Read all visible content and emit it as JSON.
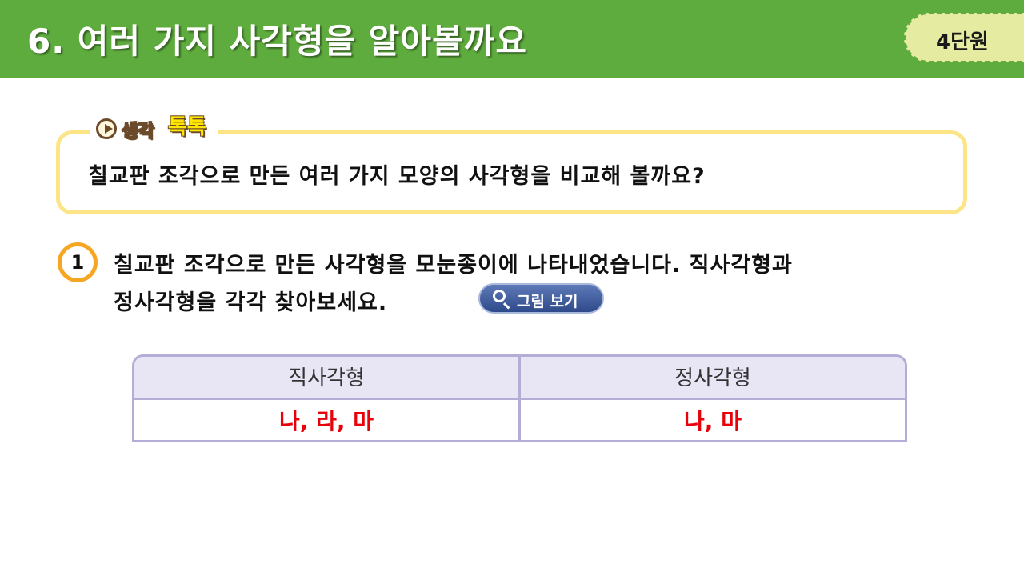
{
  "header": {
    "title": "6. 여러 가지 사각형을 알아볼까요",
    "unit_badge": "4단원",
    "background_color": "#5fac3e"
  },
  "think_box": {
    "tag_word1": "생각",
    "tag_word2": "톡톡",
    "icon": "play-icon",
    "text": "칠교판 조각으로 만든 여러 가지 모양의 사각형을 비교해 볼까요?",
    "border_color": "#fde487"
  },
  "question": {
    "number": "1",
    "line1": "칠교판 조각으로 만든 사각형을 모눈종이에 나타내었습니다. 직사각형과",
    "line2": "정사각형을 각각 찾아보세요.",
    "view_button_label": "그림 보기",
    "view_button_icon": "magnifier-icon"
  },
  "answer_table": {
    "headers": [
      "직사각형",
      "정사각형"
    ],
    "answers": [
      "나, 라, 마",
      "나, 마"
    ],
    "answer_color": "#e8000b"
  }
}
